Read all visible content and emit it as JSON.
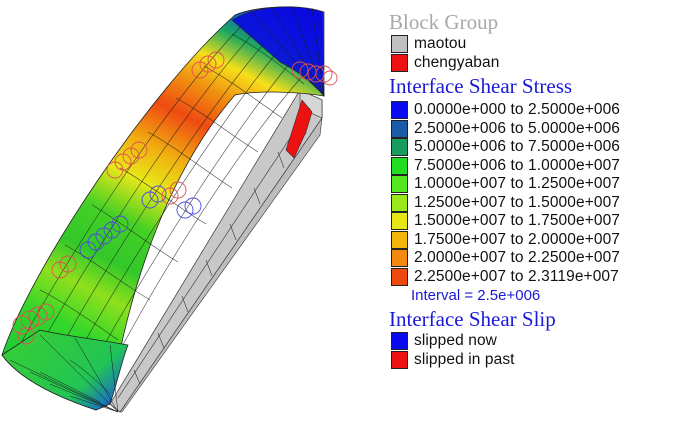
{
  "block_group": {
    "title": "Block Group",
    "items": [
      {
        "label": "maotou",
        "color": "#c0c0c0"
      },
      {
        "label": "chengyaban",
        "color": "#ee1111"
      }
    ]
  },
  "shear_stress": {
    "title": "Interface Shear Stress",
    "items": [
      {
        "label": "0.0000e+000 to  2.5000e+006",
        "color": "#0a0af0"
      },
      {
        "label": "2.5000e+006 to  5.0000e+006",
        "color": "#1a5aa8"
      },
      {
        "label": "5.0000e+006 to  7.5000e+006",
        "color": "#199a5e"
      },
      {
        "label": "7.5000e+006 to  1.0000e+007",
        "color": "#22dd22"
      },
      {
        "label": "1.0000e+007 to  1.2500e+007",
        "color": "#55e620"
      },
      {
        "label": "1.2500e+007 to  1.5000e+007",
        "color": "#99e81a"
      },
      {
        "label": "1.5000e+007 to  1.7500e+007",
        "color": "#e6e616"
      },
      {
        "label": "1.7500e+007 to  2.0000e+007",
        "color": "#f5b50c"
      },
      {
        "label": "2.0000e+007 to  2.2500e+007",
        "color": "#f28a10"
      },
      {
        "label": "2.2500e+007 to  2.3119e+007",
        "color": "#ee4a0e"
      }
    ],
    "interval": "Interval =  2.5e+006"
  },
  "shear_slip": {
    "title": "Interface Shear Slip",
    "items": [
      {
        "label": "slipped now",
        "color": "#0a0af0"
      },
      {
        "label": "slipped in past",
        "color": "#ee1111"
      }
    ]
  }
}
